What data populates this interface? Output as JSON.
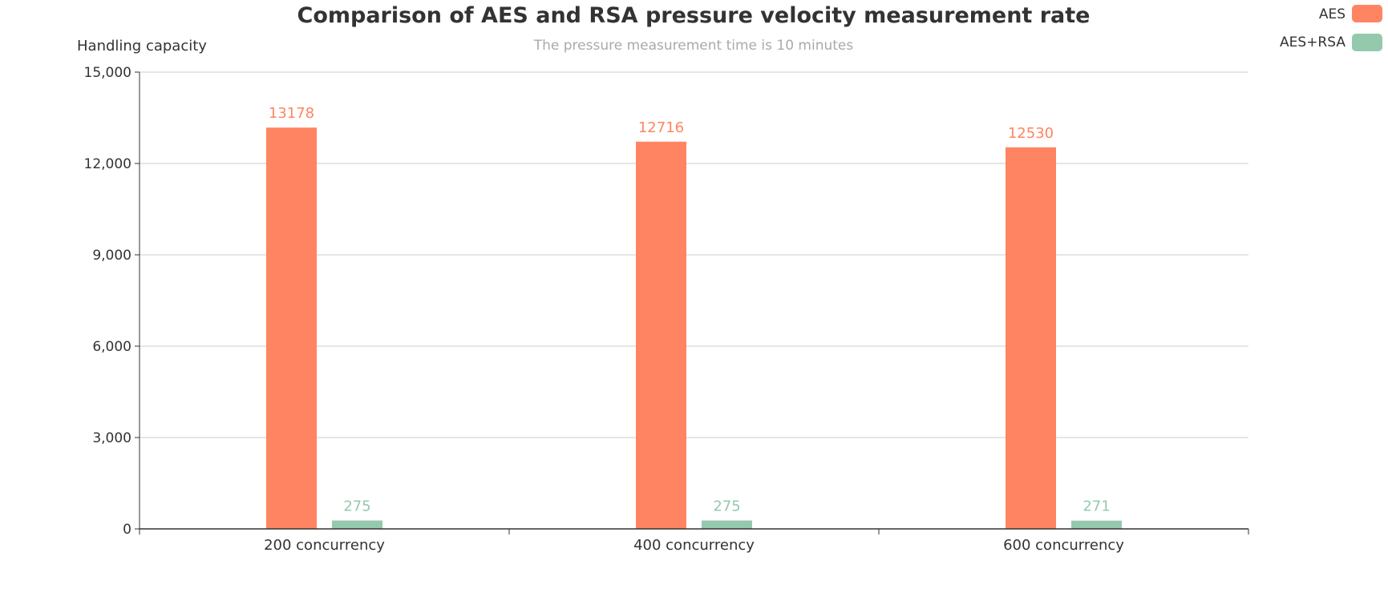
{
  "chart_data": {
    "type": "bar",
    "title": "Comparison of AES and RSA pressure velocity measurement rate",
    "subtitle": "The pressure measurement time is 10 minutes",
    "ylabel": "Handling capacity",
    "xlabel": "",
    "categories": [
      "200 concurrency",
      "400 concurrency",
      "600 concurrency"
    ],
    "ylim": [
      0,
      15000
    ],
    "yticks": [
      0,
      3000,
      6000,
      9000,
      12000,
      15000
    ],
    "ytick_labels": [
      "0",
      "3,000",
      "6,000",
      "9,000",
      "12,000",
      "15,000"
    ],
    "series": [
      {
        "name": "AES",
        "values": [
          13178,
          12716,
          12530
        ],
        "color": "#ff8562"
      },
      {
        "name": "AES+RSA",
        "values": [
          275,
          275,
          271
        ],
        "color": "#94c9ad"
      }
    ],
    "data_labels": true,
    "grid": true,
    "legend_position": "top-right"
  }
}
